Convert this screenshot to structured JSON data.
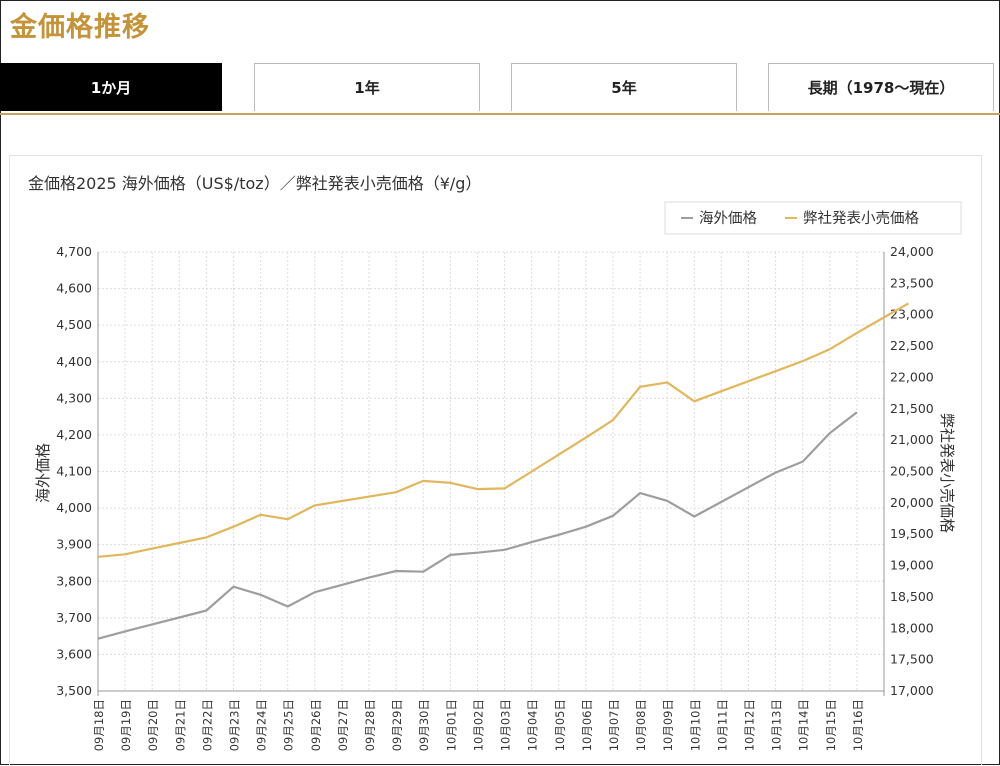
{
  "page": {
    "title": "金価格推移"
  },
  "tabs": [
    {
      "label": "1か月",
      "active": true
    },
    {
      "label": "1年",
      "active": false
    },
    {
      "label": "5年",
      "active": false
    },
    {
      "label": "長期（1978〜現在）",
      "active": false
    }
  ],
  "colors": {
    "accent": "#c4933a",
    "overseas": "#9e9e9e",
    "retail": "#e2b65c"
  },
  "chart_data": {
    "type": "line",
    "title": "金価格2025 海外価格（US$/toz）／弊社発表小売価格（¥/g）",
    "legend": {
      "position": "top-right",
      "entries": [
        "海外価格",
        "弊社発表小売価格"
      ]
    },
    "grid": true,
    "x": [
      "09月18日",
      "09月19日",
      "09月20日",
      "09月21日",
      "09月22日",
      "09月23日",
      "09月24日",
      "09月25日",
      "09月26日",
      "09月27日",
      "09月28日",
      "09月29日",
      "09月30日",
      "10月01日",
      "10月02日",
      "10月03日",
      "10月04日",
      "10月05日",
      "10月06日",
      "10月07日",
      "10月08日",
      "10月09日",
      "10月10日",
      "10月11日",
      "10月12日",
      "10月13日",
      "10月14日",
      "10月15日",
      "10月16日"
    ],
    "y_left": {
      "label": "海外価格",
      "min": 3500,
      "max": 4700,
      "step": 100
    },
    "y_right": {
      "label": "弊社発表小売価格",
      "min": 17000,
      "max": 24000,
      "step": 500
    },
    "series": [
      {
        "name": "海外価格",
        "axis": "left",
        "values": [
          3643,
          3663,
          3682,
          3701,
          3720,
          3785,
          3763,
          3731,
          3770,
          3790,
          3810,
          3828,
          3826,
          3872,
          3878,
          3886,
          3907,
          3927,
          3949,
          3979,
          4041,
          4020,
          3977,
          4017,
          4057,
          4097,
          4127,
          4205,
          4262
        ]
      },
      {
        "name": "弊社発表小売価格",
        "axis": "right",
        "x_end": 29.9,
        "end_value": 23180,
        "values": [
          19140,
          19180,
          19270,
          19360,
          19450,
          19620,
          19810,
          19740,
          19960,
          20030,
          20100,
          20170,
          20350,
          20320,
          20220,
          20230,
          20500,
          20770,
          21040,
          21320,
          21850,
          21920,
          21620,
          21780,
          21940,
          22100,
          22260,
          22450,
          22710
        ]
      }
    ]
  }
}
